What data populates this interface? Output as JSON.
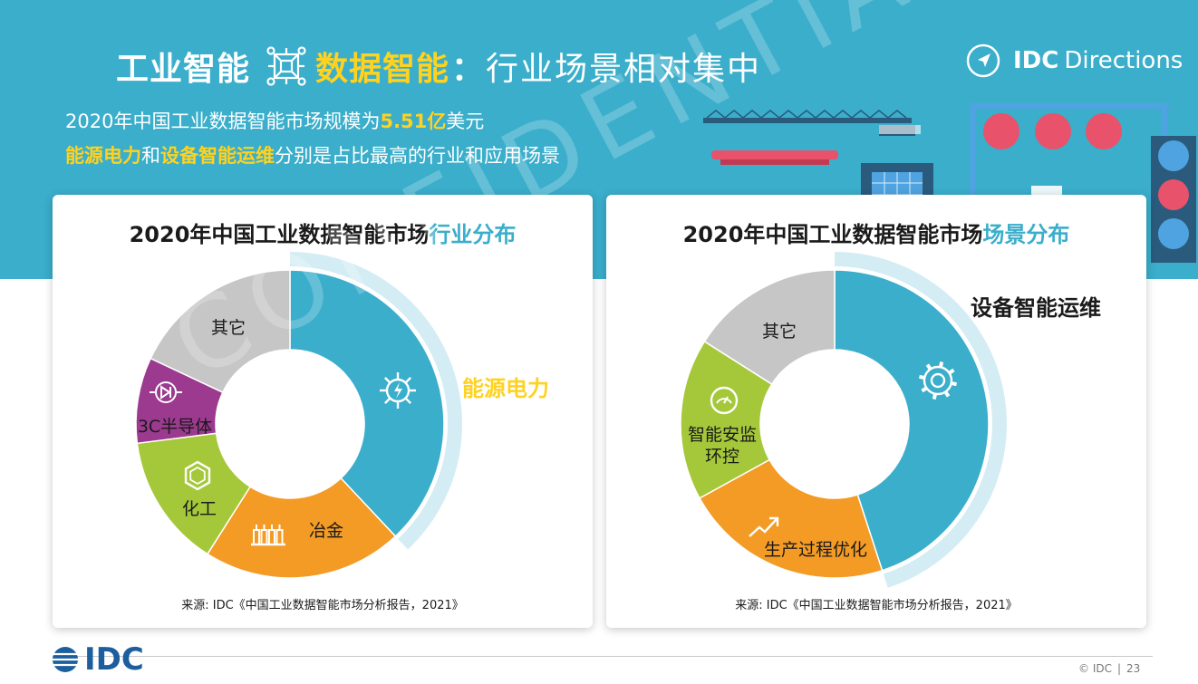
{
  "title": {
    "part1": "工业智能",
    "part2": "数据智能",
    "colon": "：",
    "part3": "行业场景相对集中"
  },
  "brand": {
    "idc": "IDC",
    "directions": "Directions"
  },
  "subtitle": {
    "line1_prefix": "2020年中国工业数据智能市场规模为",
    "line1_value": "5.51亿",
    "line1_suffix": "美元",
    "line2_hl1": "能源电力",
    "line2_mid": "和",
    "line2_hl2": "设备智能运维",
    "line2_suffix": "分别是占比最高的行业和应用场景"
  },
  "watermark": "CONFIDENTIAL",
  "chart_data": [
    {
      "type": "pie",
      "title_main": "2020年中国工业数据智能市场",
      "title_accent": "行业分布",
      "labels": [
        "能源电力",
        "冶金",
        "化工",
        "3C半导体",
        "其它"
      ],
      "values": [
        38,
        21,
        14,
        9,
        18
      ],
      "colors": [
        "#3aaecb",
        "#f39b25",
        "#a5c83b",
        "#9b3a8f",
        "#c6c6c6"
      ],
      "icons": [
        "gear-bolt-icon",
        "factory-icon",
        "hexagon-icon",
        "diode-icon",
        ""
      ],
      "highlight_index": 0,
      "highlight_color": "#ffd21f",
      "source": "来源: IDC《中国工业数据智能市场分析报告，2021》"
    },
    {
      "type": "pie",
      "title_main": "2020年中国工业数据智能市场",
      "title_accent": "场景分布",
      "labels": [
        "设备智能运维",
        "生产过程优化",
        "智能安监环控",
        "其它"
      ],
      "label_lines": [
        [
          "设备智能运维"
        ],
        [
          "生产过程优化"
        ],
        [
          "智能安监",
          "环控"
        ],
        [
          "其它"
        ]
      ],
      "values": [
        45,
        22,
        17,
        16
      ],
      "colors": [
        "#3aaecb",
        "#f39b25",
        "#a5c83b",
        "#c6c6c6"
      ],
      "icons": [
        "gear-icon",
        "trend-up-icon",
        "gauge-icon",
        ""
      ],
      "highlight_index": 0,
      "highlight_color": "#1a1a1a",
      "source": "来源: IDC《中国工业数据智能市场分析报告，2021》"
    }
  ],
  "footer": {
    "logo": "IDC",
    "copyright": "© IDC",
    "page": "23"
  }
}
